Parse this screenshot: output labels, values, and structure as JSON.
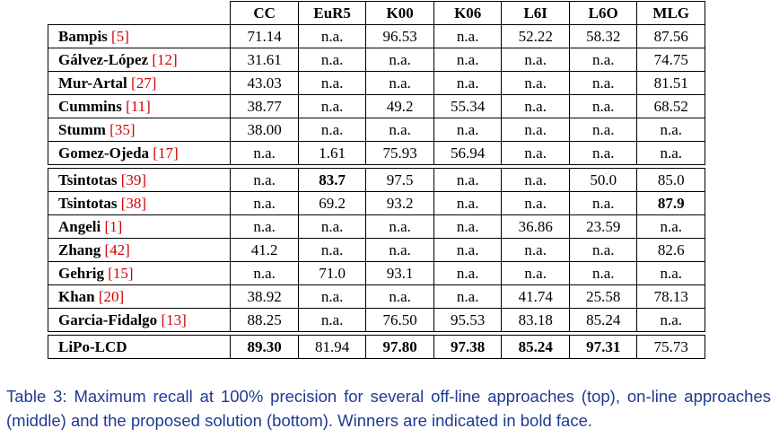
{
  "table": {
    "columns": [
      "CC",
      "EuR5",
      "K00",
      "K06",
      "L6I",
      "L6O",
      "MLG"
    ],
    "groups": [
      [
        {
          "name": "Bampis",
          "ref": "[5]",
          "values": [
            "71.14",
            "n.a.",
            "96.53",
            "n.a.",
            "52.22",
            "58.32",
            "87.56"
          ],
          "bold": []
        },
        {
          "name": "Gálvez-López",
          "ref": "[12]",
          "values": [
            "31.61",
            "n.a.",
            "n.a.",
            "n.a.",
            "n.a.",
            "n.a.",
            "74.75"
          ],
          "bold": []
        },
        {
          "name": "Mur-Artal",
          "ref": "[27]",
          "values": [
            "43.03",
            "n.a.",
            "n.a.",
            "n.a.",
            "n.a.",
            "n.a.",
            "81.51"
          ],
          "bold": []
        },
        {
          "name": "Cummins",
          "ref": "[11]",
          "values": [
            "38.77",
            "n.a.",
            "49.2",
            "55.34",
            "n.a.",
            "n.a.",
            "68.52"
          ],
          "bold": []
        },
        {
          "name": "Stumm",
          "ref": "[35]",
          "values": [
            "38.00",
            "n.a.",
            "n.a.",
            "n.a.",
            "n.a.",
            "n.a.",
            "n.a."
          ],
          "bold": []
        },
        {
          "name": "Gomez-Ojeda",
          "ref": "[17]",
          "values": [
            "n.a.",
            "1.61",
            "75.93",
            "56.94",
            "n.a.",
            "n.a.",
            "n.a."
          ],
          "bold": []
        }
      ],
      [
        {
          "name": "Tsintotas",
          "ref": "[39]",
          "values": [
            "n.a.",
            "83.7",
            "97.5",
            "n.a.",
            "n.a.",
            "50.0",
            "85.0"
          ],
          "bold": [
            1
          ]
        },
        {
          "name": "Tsintotas",
          "ref": "[38]",
          "values": [
            "n.a.",
            "69.2",
            "93.2",
            "n.a.",
            "n.a.",
            "n.a.",
            "87.9"
          ],
          "bold": [
            6
          ]
        },
        {
          "name": "Angeli",
          "ref": "[1]",
          "values": [
            "n.a.",
            "n.a.",
            "n.a.",
            "n.a.",
            "36.86",
            "23.59",
            "n.a."
          ],
          "bold": []
        },
        {
          "name": "Zhang",
          "ref": "[42]",
          "values": [
            "41.2",
            "n.a.",
            "n.a.",
            "n.a.",
            "n.a.",
            "n.a.",
            "82.6"
          ],
          "bold": []
        },
        {
          "name": "Gehrig",
          "ref": "[15]",
          "values": [
            "n.a.",
            "71.0",
            "93.1",
            "n.a.",
            "n.a.",
            "n.a.",
            "n.a."
          ],
          "bold": []
        },
        {
          "name": "Khan",
          "ref": "[20]",
          "values": [
            "38.92",
            "n.a.",
            "n.a.",
            "n.a.",
            "41.74",
            "25.58",
            "78.13"
          ],
          "bold": []
        },
        {
          "name": "Garcia-Fidalgo",
          "ref": "[13]",
          "values": [
            "88.25",
            "n.a.",
            "76.50",
            "95.53",
            "83.18",
            "85.24",
            "n.a."
          ],
          "bold": []
        }
      ],
      [
        {
          "name": "LiPo-LCD",
          "ref": "",
          "values": [
            "89.30",
            "81.94",
            "97.80",
            "97.38",
            "85.24",
            "97.31",
            "75.73"
          ],
          "bold": [
            0,
            2,
            3,
            4,
            5
          ]
        }
      ]
    ]
  },
  "caption": "Table 3: Maximum recall at 100% precision for several off-line approaches (top), on-line approaches (middle) and the proposed solution (bottom). Winners are indicated in bold face."
}
